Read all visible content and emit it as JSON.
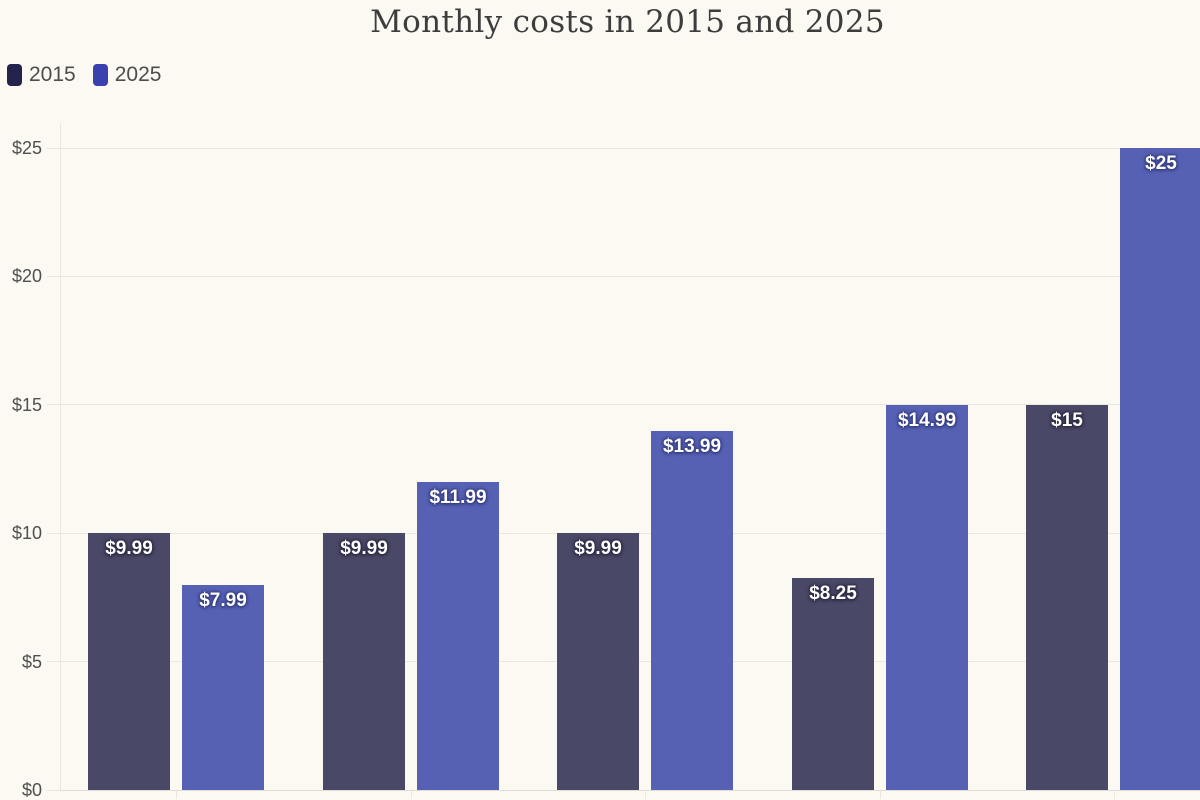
{
  "title": "Monthly costs in 2015 and 2025",
  "legend": {
    "items": [
      {
        "label": "2015",
        "swatch_color": "#24234B"
      },
      {
        "label": "2025",
        "swatch_color": "#3A40AE"
      }
    ]
  },
  "y_axis": {
    "ticks": [
      {
        "value": 0,
        "label": "$0"
      },
      {
        "value": 5,
        "label": "$5"
      },
      {
        "value": 10,
        "label": "$10"
      },
      {
        "value": 15,
        "label": "$15"
      },
      {
        "value": 20,
        "label": "$20"
      },
      {
        "value": 25,
        "label": "$25"
      }
    ]
  },
  "chart_data": {
    "type": "bar",
    "title": "Monthly costs in 2015 and 2025",
    "categories": [
      "",
      "",
      "",
      "",
      ""
    ],
    "x_axis_labels_visible": false,
    "series": [
      {
        "name": "2015",
        "color": "#494866",
        "legend_color": "#24234B",
        "halo_color": "#2B2A43",
        "values": [
          9.99,
          9.99,
          9.99,
          8.25,
          15
        ],
        "labels": [
          "$9.99",
          "$9.99",
          "$9.99",
          "$8.25",
          "$15"
        ]
      },
      {
        "name": "2025",
        "color": "#5661B4",
        "legend_color": "#3A40AE",
        "halo_color": "#343C7E",
        "values": [
          7.99,
          11.99,
          13.99,
          14.99,
          25
        ],
        "labels": [
          "$7.99",
          "$11.99",
          "$13.99",
          "$14.99",
          "$25"
        ]
      }
    ],
    "ylabel": "",
    "ylim": [
      0,
      25
    ],
    "ytick_labels": [
      "$0",
      "$5",
      "$10",
      "$15",
      "$20",
      "$25"
    ],
    "grid": true,
    "legend_position": "top-left",
    "value_labels_shown": true
  },
  "colors": {
    "background": "#FBF9F2",
    "grid": "#E9E7DF",
    "axis": "#DFDDD5",
    "tick_text": "#4F4F4F",
    "title_text": "#3D3D3D",
    "legend_text": "#4D4D4D",
    "value_label_text": "#FFFFFF"
  }
}
